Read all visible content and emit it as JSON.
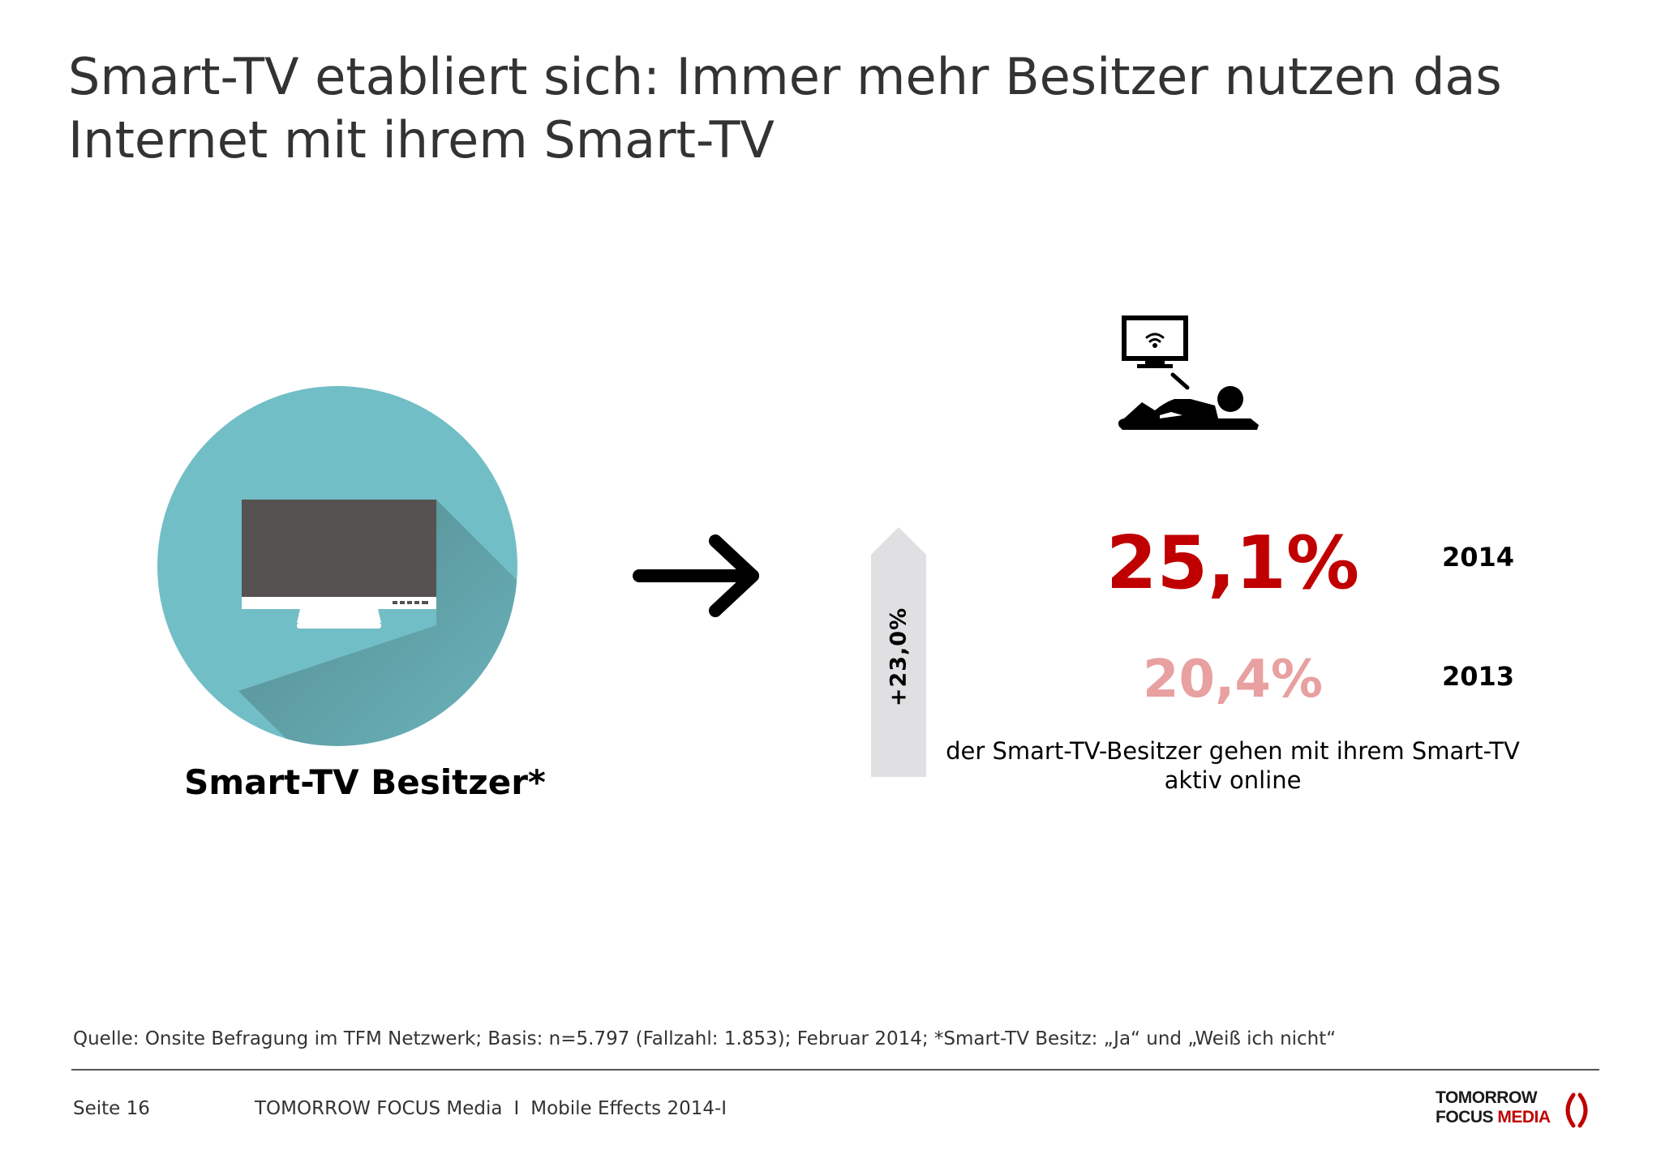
{
  "title": "Smart-TV etabliert sich: Immer mehr Besitzer nutzen das Internet mit ihrem Smart-TV",
  "left": {
    "label": "Smart-TV Besitzer*",
    "circle_color": "#72bec6",
    "tv_color": "#565252",
    "icon": "smart-tv-icon"
  },
  "growth": {
    "label": "+23,0%",
    "arrow_color": "#e0dfe1"
  },
  "right": {
    "icon": "person-watching-tv-icon",
    "stats": [
      {
        "value": "25,1%",
        "year": "2014",
        "color": "#c00000"
      },
      {
        "value": "20,4%",
        "year": "2013",
        "color": "#e8a0a0"
      }
    ],
    "description": "der Smart-TV-Besitzer gehen mit ihrem Smart-TV aktiv online"
  },
  "footer": {
    "source": "Quelle: Onsite Befragung im TFM Netzwerk; Basis: n=5.797 (Fallzahl: 1.853); Februar 2014; *Smart-TV Besitz: „Ja“ und „Weiß ich nicht“",
    "page": "Seite 16",
    "company": "TOMORROW FOCUS Media",
    "separator": "I",
    "report": "Mobile Effects 2014-I",
    "logo": {
      "line1": "TOMORROW",
      "line2_a": "FOCUS ",
      "line2_b": "MEDIA",
      "accent_color": "#c00000"
    }
  }
}
